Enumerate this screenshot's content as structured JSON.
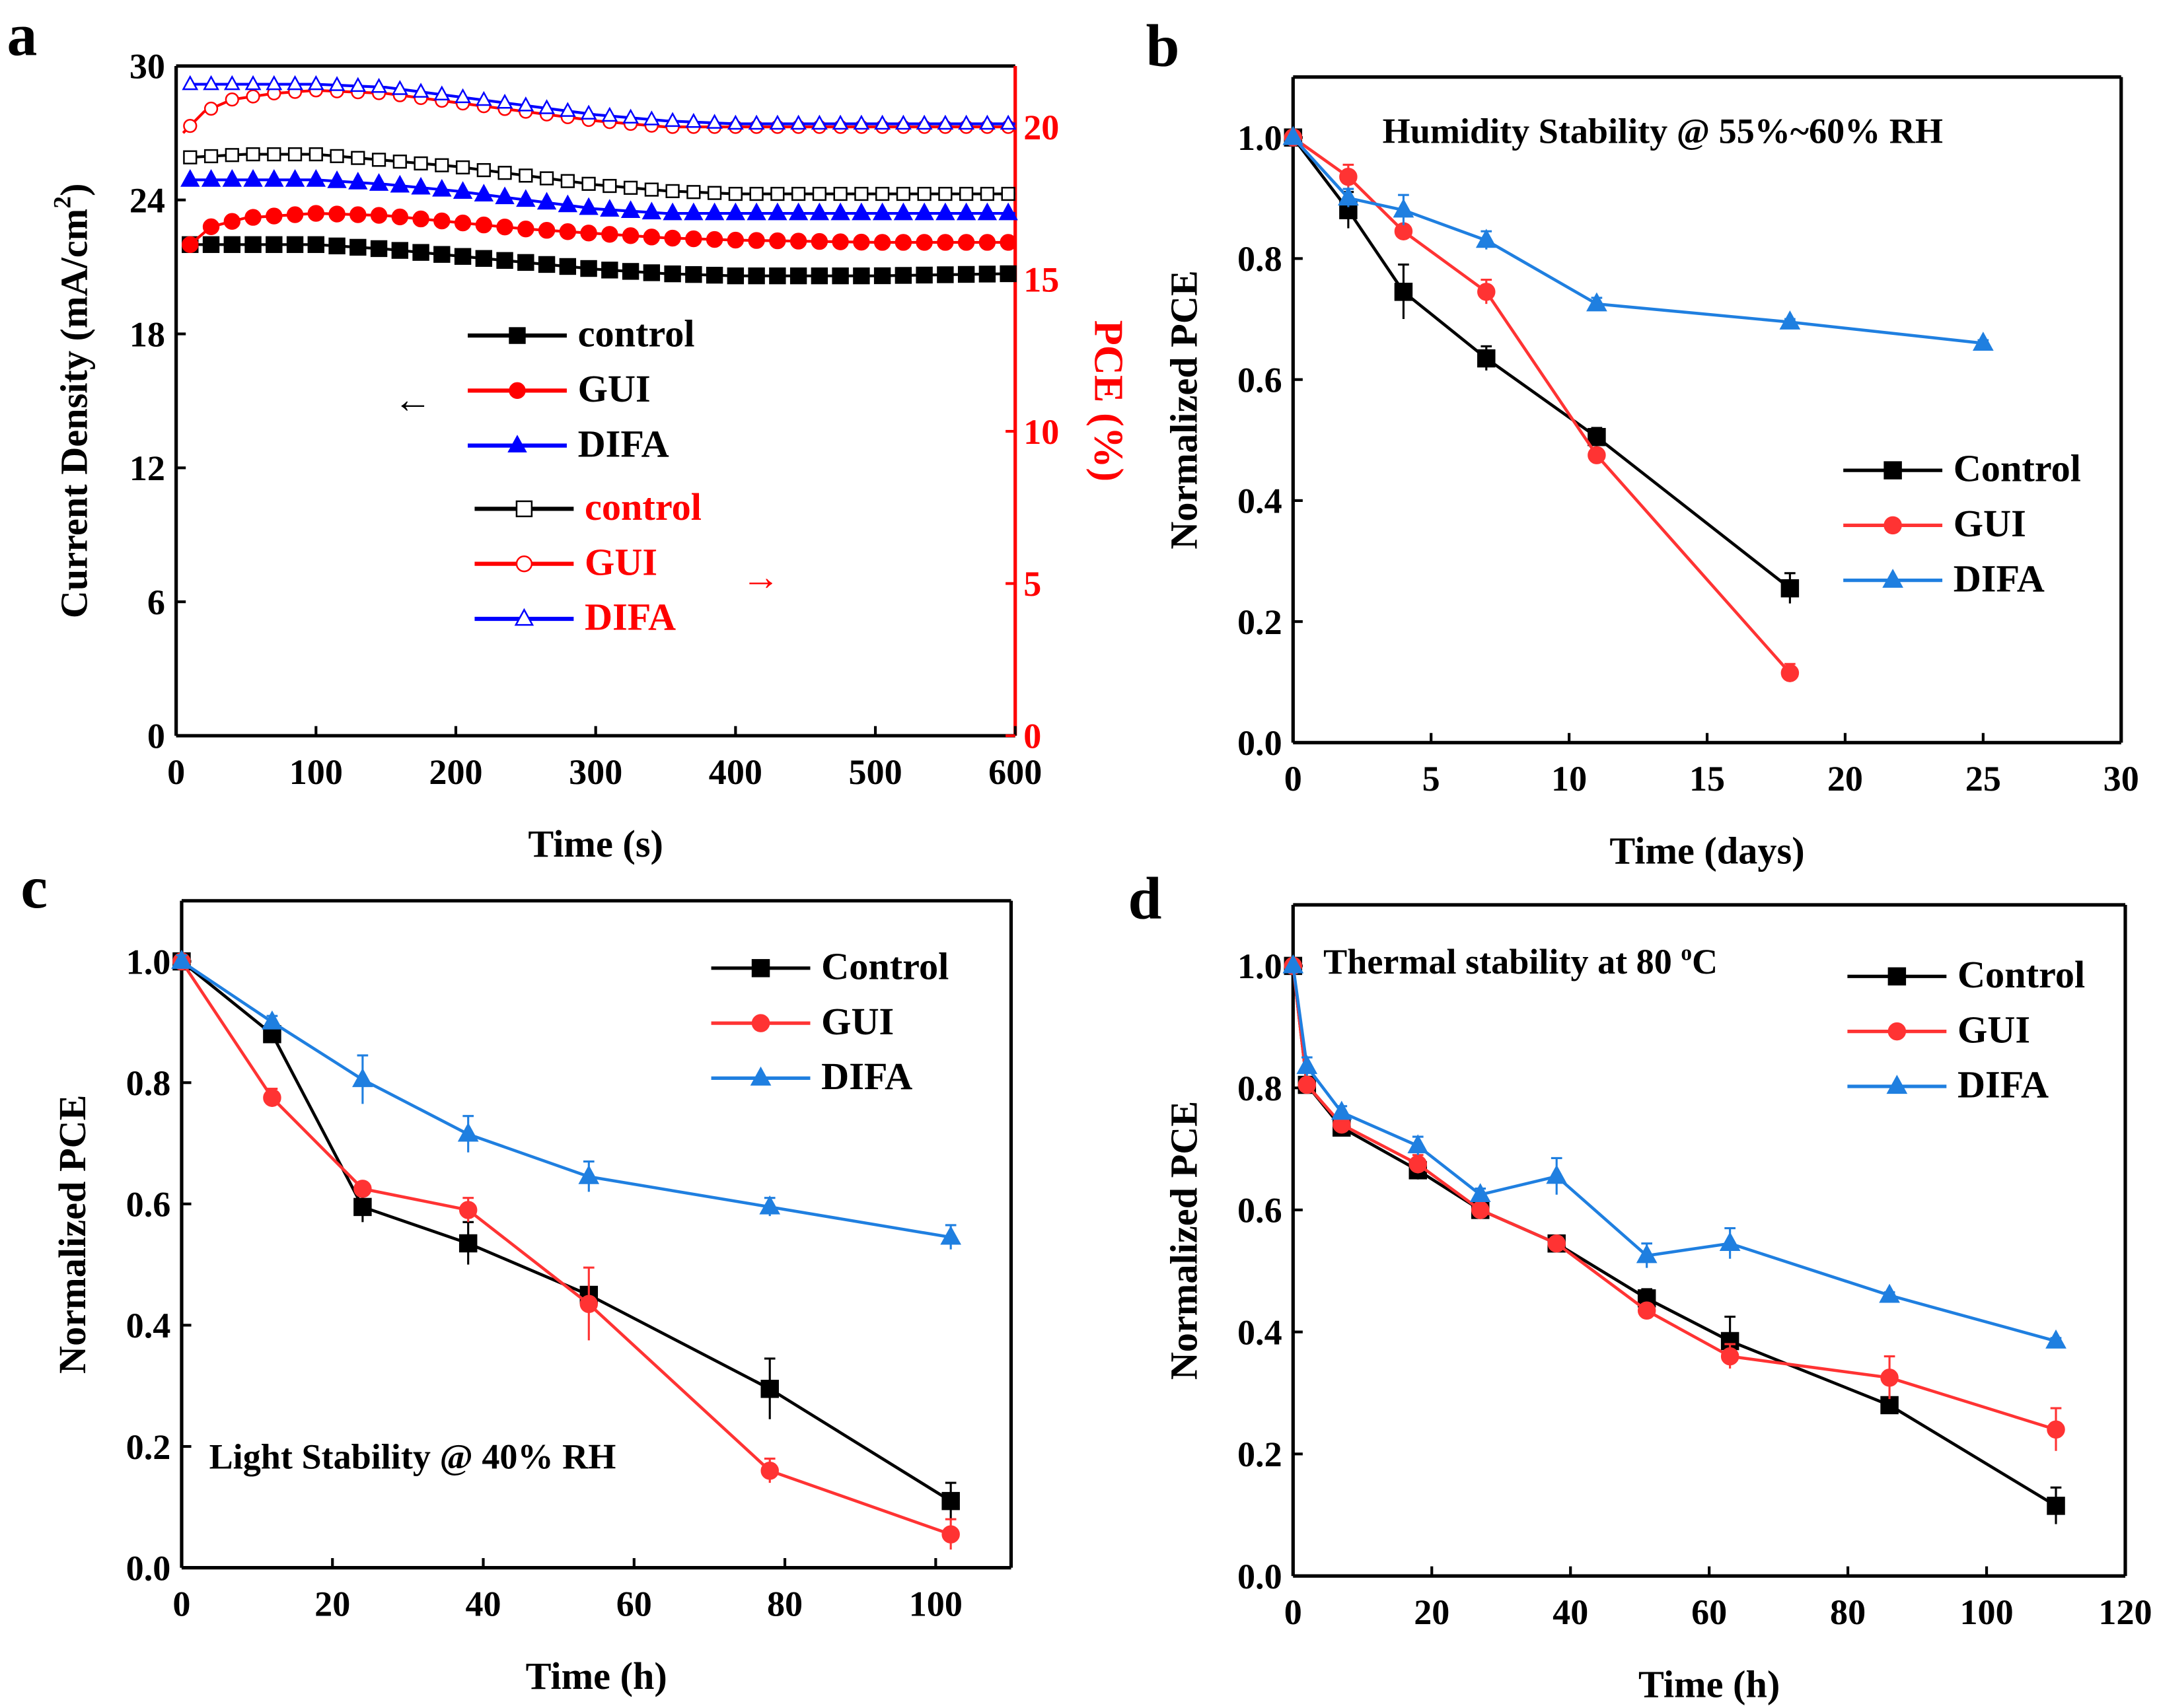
{
  "chart_data": [
    {
      "panel_label": "a",
      "type": "line",
      "xlabel": "Time (s)",
      "ylabel": "Current Density (mA/cm",
      "ylabel_sup": "2",
      "ylabel_close": ")",
      "ylabel_right": "PCE (%)",
      "xlim": [
        0,
        600
      ],
      "ylim": [
        0,
        30
      ],
      "ylim_right": [
        0,
        22
      ],
      "xticks": [
        0,
        100,
        200,
        300,
        400,
        500,
        600
      ],
      "yticks": [
        0,
        6,
        12,
        18,
        24,
        30
      ],
      "yticks_right": [
        0,
        5,
        10,
        15,
        20
      ],
      "right_axis_color": "#ff0000",
      "series": [
        {
          "name": "control",
          "axis": "left",
          "color": "#000000",
          "marker": "square-filled",
          "x": [
            10,
            50,
            100,
            150,
            200,
            250,
            300,
            350,
            400,
            500,
            600
          ],
          "y": [
            22.0,
            22.0,
            22.0,
            21.8,
            21.5,
            21.2,
            20.9,
            20.7,
            20.6,
            20.6,
            20.7
          ]
        },
        {
          "name": "GUI",
          "axis": "left",
          "color": "#ff0000",
          "marker": "circle-filled",
          "x": [
            10,
            25,
            50,
            100,
            150,
            200,
            250,
            300,
            350,
            400,
            500,
            600
          ],
          "y": [
            22.0,
            22.8,
            23.2,
            23.4,
            23.3,
            23.0,
            22.7,
            22.5,
            22.3,
            22.2,
            22.1,
            22.1
          ]
        },
        {
          "name": "DIFA",
          "axis": "left",
          "color": "#0000ff",
          "marker": "triangle-filled",
          "x": [
            10,
            50,
            100,
            150,
            200,
            250,
            300,
            350,
            400,
            500,
            600
          ],
          "y": [
            24.9,
            24.9,
            24.9,
            24.7,
            24.4,
            24.0,
            23.6,
            23.4,
            23.4,
            23.4,
            23.4
          ]
        },
        {
          "name": "control",
          "axis": "right",
          "color": "#000000",
          "marker": "square-open",
          "x": [
            10,
            50,
            100,
            150,
            200,
            250,
            300,
            350,
            400,
            500,
            600
          ],
          "y": [
            19.0,
            19.1,
            19.1,
            18.9,
            18.7,
            18.4,
            18.1,
            17.9,
            17.8,
            17.8,
            17.8
          ]
        },
        {
          "name": "GUI",
          "axis": "right",
          "color": "#ff0000",
          "marker": "circle-open",
          "x": [
            5,
            20,
            40,
            70,
            100,
            150,
            200,
            250,
            300,
            350,
            400,
            500,
            600
          ],
          "y": [
            19.8,
            20.5,
            20.9,
            21.1,
            21.2,
            21.1,
            20.8,
            20.5,
            20.2,
            20.0,
            20.0,
            20.0,
            20.0
          ]
        },
        {
          "name": "DIFA",
          "axis": "right",
          "color": "#0000ff",
          "marker": "triangle-open",
          "x": [
            10,
            50,
            100,
            150,
            200,
            250,
            300,
            350,
            400,
            500,
            600
          ],
          "y": [
            21.4,
            21.4,
            21.4,
            21.3,
            21.0,
            20.7,
            20.4,
            20.2,
            20.1,
            20.1,
            20.1
          ]
        }
      ],
      "legend_left_label": "←",
      "legend_right_label": "→",
      "legend_position": "center"
    },
    {
      "panel_label": "b",
      "type": "line",
      "title": "Humidity Stability @ 55%~60% RH",
      "xlabel": "Time (days)",
      "ylabel": "Normalized PCE",
      "xlim": [
        0,
        30
      ],
      "ylim": [
        0,
        1.1
      ],
      "xticks": [
        0,
        5,
        10,
        15,
        20,
        25,
        30
      ],
      "yticks": [
        0.0,
        0.2,
        0.4,
        0.6,
        0.8,
        1.0
      ],
      "legend_position": "center-right",
      "series": [
        {
          "name": "Control",
          "color": "#000000",
          "marker": "square",
          "x": [
            0,
            2,
            4,
            7,
            11,
            18
          ],
          "y": [
            1.0,
            0.88,
            0.745,
            0.635,
            0.505,
            0.255
          ],
          "err": [
            0,
            0.03,
            0.045,
            0.02,
            0.015,
            0.025
          ]
        },
        {
          "name": "GUI",
          "color": "#ff3333",
          "marker": "circle",
          "x": [
            0,
            2,
            4,
            7,
            11,
            18
          ],
          "y": [
            1.0,
            0.935,
            0.845,
            0.745,
            0.475,
            0.115
          ],
          "err": [
            0,
            0.02,
            0.01,
            0.02,
            0.01,
            0.015
          ]
        },
        {
          "name": "DIFA",
          "color": "#1f7fe0",
          "marker": "triangle",
          "x": [
            0,
            2,
            4,
            7,
            11,
            18,
            25
          ],
          "y": [
            1.0,
            0.9,
            0.88,
            0.83,
            0.725,
            0.695,
            0.66
          ],
          "err": [
            0,
            0.015,
            0.025,
            0.015,
            0.01,
            0.005,
            0.005
          ]
        }
      ]
    },
    {
      "panel_label": "c",
      "type": "line",
      "title": "Light Stability @ 40% RH",
      "xlabel": "Time (h)",
      "ylabel": "Normalized PCE",
      "xlim": [
        0,
        110
      ],
      "ylim": [
        0,
        1.1
      ],
      "xticks": [
        0,
        20,
        40,
        60,
        80,
        100
      ],
      "yticks": [
        0.0,
        0.2,
        0.4,
        0.6,
        0.8,
        1.0
      ],
      "legend_position": "top-right",
      "series": [
        {
          "name": "Control",
          "color": "#000000",
          "marker": "square",
          "x": [
            0,
            12,
            24,
            38,
            54,
            78,
            102
          ],
          "y": [
            1.0,
            0.88,
            0.595,
            0.535,
            0.45,
            0.295,
            0.11
          ],
          "err": [
            0.01,
            0.015,
            0.025,
            0.035,
            0.01,
            0.05,
            0.03
          ]
        },
        {
          "name": "GUI",
          "color": "#ff3333",
          "marker": "circle",
          "x": [
            0,
            12,
            24,
            38,
            54,
            78,
            102
          ],
          "y": [
            1.0,
            0.775,
            0.625,
            0.59,
            0.435,
            0.16,
            0.055
          ],
          "err": [
            0.01,
            0.015,
            0.01,
            0.02,
            0.06,
            0.02,
            0.025
          ]
        },
        {
          "name": "DIFA",
          "color": "#1f7fe0",
          "marker": "triangle",
          "x": [
            0,
            12,
            24,
            38,
            54,
            78,
            102
          ],
          "y": [
            1.0,
            0.9,
            0.805,
            0.715,
            0.645,
            0.595,
            0.545
          ],
          "err": [
            0.01,
            0.01,
            0.04,
            0.03,
            0.025,
            0.015,
            0.02
          ]
        }
      ]
    },
    {
      "panel_label": "d",
      "type": "line",
      "title": "Thermal stability at 80 ",
      "title_sup": "o",
      "title_end": "C",
      "xlabel": "Time (h)",
      "ylabel": "Normalized PCE",
      "xlim": [
        0,
        120
      ],
      "ylim": [
        0,
        1.1
      ],
      "xticks": [
        0,
        20,
        40,
        60,
        80,
        100,
        120
      ],
      "yticks": [
        0.0,
        0.2,
        0.4,
        0.6,
        0.8,
        1.0
      ],
      "legend_position": "top-right",
      "series": [
        {
          "name": "Control",
          "color": "#000000",
          "marker": "square",
          "x": [
            0,
            2,
            7,
            18,
            27,
            38,
            51,
            63,
            86,
            110
          ],
          "y": [
            1.0,
            0.805,
            0.735,
            0.665,
            0.6,
            0.545,
            0.455,
            0.385,
            0.28,
            0.115
          ],
          "err": [
            0,
            0.01,
            0.01,
            0.015,
            0.01,
            0.01,
            0.015,
            0.04,
            0.01,
            0.03
          ]
        },
        {
          "name": "GUI",
          "color": "#ff3333",
          "marker": "circle",
          "x": [
            0,
            2,
            7,
            18,
            27,
            38,
            51,
            63,
            86,
            110
          ],
          "y": [
            1.0,
            0.805,
            0.74,
            0.675,
            0.6,
            0.545,
            0.435,
            0.36,
            0.325,
            0.24
          ],
          "err": [
            0,
            0.01,
            0.01,
            0.015,
            0.015,
            0.01,
            0.01,
            0.02,
            0.035,
            0.035
          ]
        },
        {
          "name": "DIFA",
          "color": "#1f7fe0",
          "marker": "triangle",
          "x": [
            0,
            2,
            7,
            18,
            27,
            38,
            51,
            63,
            86,
            110
          ],
          "y": [
            1.0,
            0.835,
            0.76,
            0.705,
            0.625,
            0.655,
            0.525,
            0.545,
            0.46,
            0.385
          ],
          "err": [
            0,
            0.015,
            0.01,
            0.015,
            0.01,
            0.03,
            0.02,
            0.025,
            0.005,
            0.005
          ]
        }
      ]
    }
  ]
}
